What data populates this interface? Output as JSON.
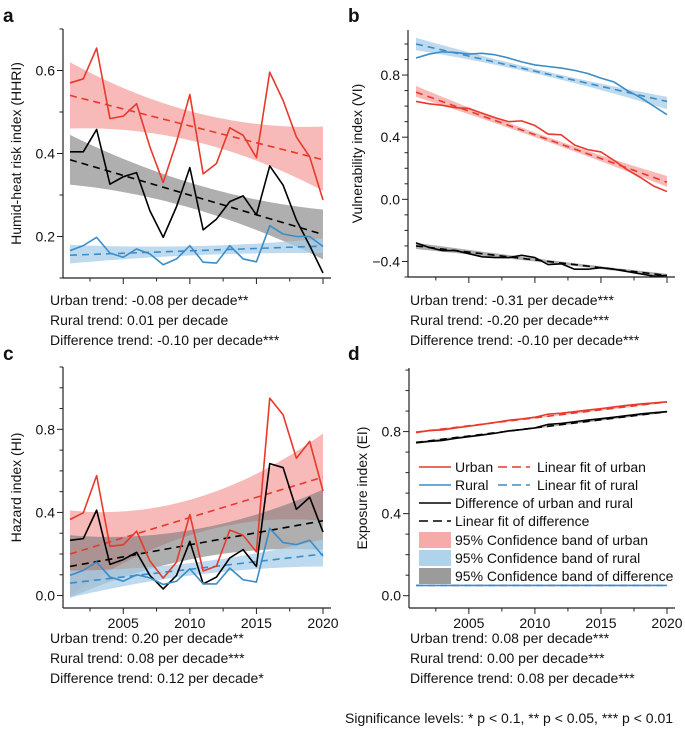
{
  "colors": {
    "urban": "#e8392b",
    "rural": "#3a8dc8",
    "difference": "#000000",
    "urban_band": "#f4a3a0",
    "rural_band": "#a8cde9",
    "difference_band": "#7a7a7a"
  },
  "legend": {
    "placement": "inside panel d, center-left",
    "items": [
      {
        "label": "Urban",
        "kind": "line",
        "series": "urban"
      },
      {
        "label": "Linear fit of urban",
        "kind": "dash",
        "series": "urban"
      },
      {
        "label": "Rural",
        "kind": "line",
        "series": "rural"
      },
      {
        "label": "Linear fit of rural",
        "kind": "dash",
        "series": "rural"
      },
      {
        "label": "Difference of urban and rural",
        "kind": "line",
        "series": "difference"
      },
      {
        "label": "Linear fit of difference",
        "kind": "dash",
        "series": "difference"
      },
      {
        "label": "95% Confidence band of urban",
        "kind": "band",
        "series": "urban"
      },
      {
        "label": "95% Confidence band of rural",
        "kind": "band",
        "series": "rural"
      },
      {
        "label": "95% Confidence band of difference",
        "kind": "band",
        "series": "difference"
      }
    ]
  },
  "significance_note": "Significance levels: * p < 0.1, ** p < 0.05, *** p < 0.01",
  "chart_data": [
    {
      "panel": "a",
      "type": "line",
      "ylabel": "Humid-heat risk index (HHRI)",
      "x": [
        2001,
        2002,
        2003,
        2004,
        2005,
        2006,
        2007,
        2008,
        2009,
        2010,
        2011,
        2012,
        2013,
        2014,
        2015,
        2016,
        2017,
        2018,
        2019,
        2020
      ],
      "xlim": [
        2001,
        2020
      ],
      "xticks": [],
      "ylim": [
        0.1,
        0.7
      ],
      "yticks": [
        "0.2",
        "0.4",
        "0.6"
      ],
      "grid": false,
      "series": [
        {
          "key": "urban",
          "values": [
            0.57,
            0.58,
            0.654,
            0.484,
            0.49,
            0.52,
            0.416,
            0.33,
            0.428,
            0.542,
            0.351,
            0.376,
            0.462,
            0.444,
            0.39,
            0.596,
            0.528,
            0.44,
            0.392,
            0.288
          ],
          "fit": [
            0.54,
            0.385
          ],
          "band": {
            "years": [
              2001,
              2010.5,
              2020
            ],
            "lower": [
              0.46,
              0.428,
              0.31
            ],
            "upper": [
              0.62,
              0.498,
              0.465
            ]
          }
        },
        {
          "key": "difference",
          "values": [
            0.404,
            0.404,
            0.458,
            0.326,
            0.344,
            0.354,
            0.262,
            0.198,
            0.272,
            0.366,
            0.216,
            0.242,
            0.284,
            0.298,
            0.252,
            0.37,
            0.324,
            0.24,
            0.178,
            0.112
          ],
          "fit": [
            0.385,
            0.205
          ],
          "band": {
            "years": [
              2001,
              2010.5,
              2020
            ],
            "lower": [
              0.325,
              0.265,
              0.145
            ],
            "upper": [
              0.445,
              0.325,
              0.265
            ]
          }
        },
        {
          "key": "rural",
          "values": [
            0.166,
            0.178,
            0.198,
            0.16,
            0.15,
            0.17,
            0.158,
            0.132,
            0.146,
            0.178,
            0.138,
            0.136,
            0.178,
            0.146,
            0.139,
            0.226,
            0.206,
            0.2,
            0.2,
            0.176
          ],
          "fit": [
            0.155,
            0.177
          ],
          "band": {
            "years": [
              2001,
              2010.5,
              2020
            ],
            "lower": [
              0.135,
              0.155,
              0.16
            ],
            "upper": [
              0.18,
              0.177,
              0.195
            ]
          }
        }
      ],
      "trends": [
        "Urban trend: -0.08 per decade**",
        "Rural trend: 0.01 per decade",
        "Difference trend: -0.10 per decade***"
      ]
    },
    {
      "panel": "b",
      "type": "line",
      "ylabel": "Vulnerability index (VI)",
      "x": [
        2001,
        2002,
        2003,
        2004,
        2005,
        2006,
        2007,
        2008,
        2009,
        2010,
        2011,
        2012,
        2013,
        2014,
        2015,
        2016,
        2017,
        2018,
        2019,
        2020
      ],
      "xlim": [
        2001,
        2020
      ],
      "xticks": [],
      "ylim": [
        -0.5,
        1.09
      ],
      "yticks": [
        "-0.4",
        "0.0",
        "0.4",
        "0.8"
      ],
      "grid": false,
      "series": [
        {
          "key": "rural",
          "values": [
            0.91,
            0.935,
            0.95,
            0.945,
            0.935,
            0.94,
            0.93,
            0.91,
            0.885,
            0.865,
            0.855,
            0.845,
            0.83,
            0.81,
            0.78,
            0.755,
            0.7,
            0.655,
            0.6,
            0.545
          ],
          "fit": [
            1.0,
            0.63
          ],
          "band": {
            "years": [
              2001,
              2010.5,
              2020
            ],
            "lower": [
              0.96,
              0.8,
              0.58
            ],
            "upper": [
              1.04,
              0.83,
              0.66
            ]
          }
        },
        {
          "key": "urban",
          "values": [
            0.63,
            0.615,
            0.605,
            0.59,
            0.585,
            0.555,
            0.525,
            0.5,
            0.505,
            0.475,
            0.42,
            0.415,
            0.35,
            0.32,
            0.305,
            0.25,
            0.19,
            0.14,
            0.085,
            0.05
          ],
          "fit": [
            0.69,
            0.11
          ],
          "band": {
            "years": [
              2001,
              2010.5,
              2020
            ],
            "lower": [
              0.66,
              0.385,
              0.08
            ],
            "upper": [
              0.73,
              0.415,
              0.15
            ]
          }
        },
        {
          "key": "difference",
          "values": [
            -0.28,
            -0.31,
            -0.33,
            -0.33,
            -0.35,
            -0.37,
            -0.375,
            -0.375,
            -0.36,
            -0.375,
            -0.42,
            -0.415,
            -0.45,
            -0.45,
            -0.44,
            -0.45,
            -0.465,
            -0.48,
            -0.495,
            -0.49
          ],
          "fit": [
            -0.3,
            -0.49
          ],
          "band": {
            "years": [
              2001,
              2010.5,
              2020
            ],
            "lower": [
              -0.32,
              -0.405,
              -0.5
            ],
            "upper": [
              -0.28,
              -0.385,
              -0.48
            ]
          }
        }
      ],
      "trends": [
        "Urban trend: -0.31 per decade***",
        "Rural trend: -0.20 per decade***",
        "Difference trend: -0.10 per decade***"
      ]
    },
    {
      "panel": "c",
      "type": "line",
      "ylabel": "Hazard index (HI)",
      "x": [
        2001,
        2002,
        2003,
        2004,
        2005,
        2006,
        2007,
        2008,
        2009,
        2010,
        2011,
        2012,
        2013,
        2014,
        2015,
        2016,
        2017,
        2018,
        2019,
        2020
      ],
      "xlim": [
        2001,
        2020
      ],
      "xticks": [
        "2005",
        "2010",
        "2015",
        "2020"
      ],
      "ylim": [
        -0.06,
        1.1
      ],
      "yticks": [
        "0.0",
        "0.4",
        "0.8"
      ],
      "grid": false,
      "series": [
        {
          "key": "urban",
          "values": [
            0.366,
            0.398,
            0.577,
            0.237,
            0.244,
            0.31,
            0.166,
            0.084,
            0.161,
            0.39,
            0.118,
            0.142,
            0.315,
            0.29,
            0.21,
            0.95,
            0.87,
            0.661,
            0.742,
            0.503
          ],
          "fit": [
            0.2,
            0.57
          ],
          "band": {
            "years": [
              2001,
              2010.5,
              2020
            ],
            "lower": [
              0.0,
              0.3,
              0.36
            ],
            "upper": [
              0.41,
              0.47,
              0.78
            ]
          }
        },
        {
          "key": "difference",
          "values": [
            0.266,
            0.274,
            0.411,
            0.15,
            0.173,
            0.208,
            0.097,
            0.032,
            0.097,
            0.261,
            0.056,
            0.089,
            0.181,
            0.221,
            0.14,
            0.635,
            0.616,
            0.415,
            0.473,
            0.306
          ],
          "fit": [
            0.14,
            0.36
          ],
          "band": {
            "years": [
              2001,
              2010.5,
              2020
            ],
            "lower": [
              -0.01,
              0.18,
              0.22
            ],
            "upper": [
              0.29,
              0.32,
              0.51
            ]
          }
        },
        {
          "key": "rural",
          "values": [
            0.097,
            0.121,
            0.161,
            0.089,
            0.069,
            0.1,
            0.085,
            0.053,
            0.069,
            0.129,
            0.056,
            0.056,
            0.132,
            0.076,
            0.065,
            0.323,
            0.255,
            0.245,
            0.266,
            0.19
          ],
          "fit": [
            0.06,
            0.2
          ],
          "band": {
            "years": [
              2001,
              2010.5,
              2020
            ],
            "lower": [
              -0.01,
              0.1,
              0.14
            ],
            "upper": [
              0.12,
              0.16,
              0.27
            ]
          }
        }
      ],
      "trends": [
        "Urban trend: 0.20 per decade**",
        "Rural trend: 0.08 per decade***",
        "Difference trend: 0.12 per decade*"
      ]
    },
    {
      "panel": "d",
      "type": "line",
      "ylabel": "Exposure index (EI)",
      "x": [
        2001,
        2002,
        2003,
        2004,
        2005,
        2006,
        2007,
        2008,
        2009,
        2010,
        2011,
        2012,
        2013,
        2014,
        2015,
        2016,
        2017,
        2018,
        2019,
        2020
      ],
      "xlim": [
        2001,
        2020
      ],
      "xticks": [
        "2005",
        "2010",
        "2015",
        "2020"
      ],
      "ylim": [
        -0.06,
        1.11
      ],
      "yticks": [
        "0.0",
        "0.4",
        "0.8"
      ],
      "grid": false,
      "series": [
        {
          "key": "urban",
          "values": [
            0.795,
            0.805,
            0.808,
            0.818,
            0.826,
            0.835,
            0.845,
            0.855,
            0.862,
            0.87,
            0.885,
            0.89,
            0.897,
            0.905,
            0.912,
            0.92,
            0.928,
            0.935,
            0.94,
            0.945
          ],
          "fit": [
            0.797,
            0.945
          ],
          "band": {
            "years": [
              2001,
              2010.5,
              2020
            ],
            "lower": [
              0.792,
              0.868,
              0.94
            ],
            "upper": [
              0.802,
              0.874,
              0.95
            ]
          }
        },
        {
          "key": "difference",
          "values": [
            0.745,
            0.752,
            0.757,
            0.767,
            0.775,
            0.783,
            0.792,
            0.803,
            0.81,
            0.818,
            0.835,
            0.84,
            0.848,
            0.856,
            0.863,
            0.87,
            0.878,
            0.886,
            0.892,
            0.897
          ],
          "fit": [
            0.747,
            0.897
          ],
          "band": {
            "years": [
              2001,
              2010.5,
              2020
            ],
            "lower": [
              0.742,
              0.818,
              0.892
            ],
            "upper": [
              0.752,
              0.824,
              0.902
            ]
          }
        },
        {
          "key": "rural",
          "values": [
            0.05,
            0.05,
            0.05,
            0.05,
            0.05,
            0.05,
            0.05,
            0.05,
            0.05,
            0.05,
            0.05,
            0.05,
            0.05,
            0.05,
            0.05,
            0.05,
            0.05,
            0.05,
            0.05,
            0.05
          ],
          "fit": [
            0.05,
            0.05
          ],
          "band": {
            "years": [
              2001,
              2010.5,
              2020
            ],
            "lower": [
              0.048,
              0.049,
              0.048
            ],
            "upper": [
              0.052,
              0.051,
              0.052
            ]
          }
        }
      ],
      "trends": [
        "Urban trend: 0.08 per decade***",
        "Rural trend: 0.00 per decade***",
        "Difference trend: 0.08 per decade***"
      ]
    }
  ]
}
